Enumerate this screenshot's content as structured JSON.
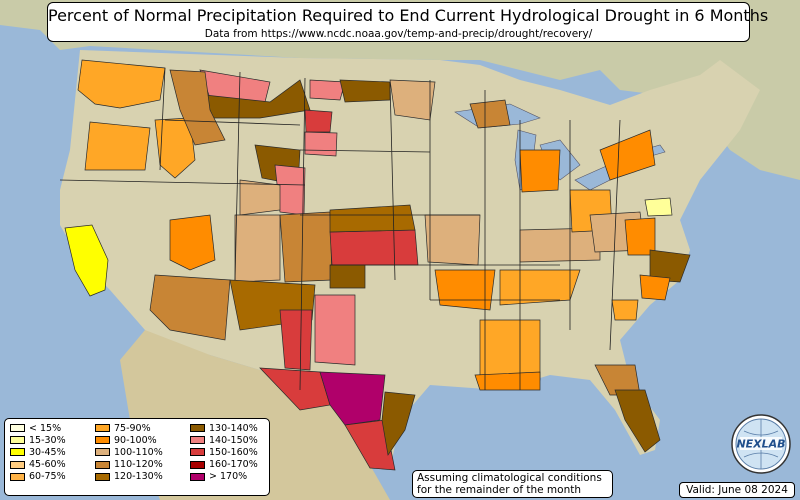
{
  "title": "Percent of Normal Precipitation Required to End Current Hydrological Drought in 6 Months",
  "subtitle": "Data from https://www.ncdc.noaa.gov/temp-and-precip/drought/recovery/",
  "legend": [
    {
      "label": "< 15%",
      "color": "#ffffe0"
    },
    {
      "label": "15-30%",
      "color": "#ffff99"
    },
    {
      "label": "30-45%",
      "color": "#ffff00"
    },
    {
      "label": "45-60%",
      "color": "#ffcc80"
    },
    {
      "label": "60-75%",
      "color": "#ffb347"
    },
    {
      "label": "75-90%",
      "color": "#ffa726"
    },
    {
      "label": "90-100%",
      "color": "#ff8c00"
    },
    {
      "label": "100-110%",
      "color": "#ddb07c"
    },
    {
      "label": "110-120%",
      "color": "#c88535"
    },
    {
      "label": "120-130%",
      "color": "#a86a00"
    },
    {
      "label": "130-140%",
      "color": "#8b5a00"
    },
    {
      "label": "140-150%",
      "color": "#f08080"
    },
    {
      "label": "150-160%",
      "color": "#d83c3c"
    },
    {
      "label": "160-170%",
      "color": "#a80000"
    },
    {
      "label": "> 170%",
      "color": "#b0006a"
    }
  ],
  "note": {
    "line1": "Assuming climatological conditions",
    "line2": "for the remainder of the month"
  },
  "valid": "Valid: June 08 2024",
  "logo": {
    "text": "NEXLAB",
    "icon": "nexlab-globe-logo"
  },
  "colors": {
    "ocean": "#9ab8d8",
    "land": "#d8d2b0",
    "borders": "#222222"
  }
}
